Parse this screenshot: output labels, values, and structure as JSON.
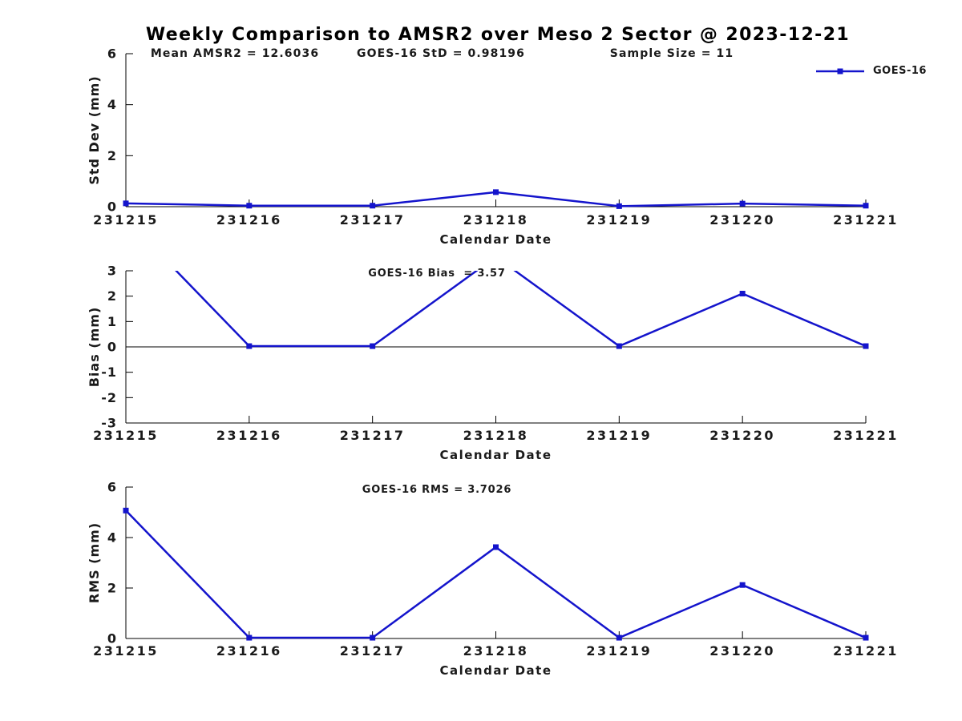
{
  "title": "Weekly Comparison to AMSR2 over Meso 2 Sector @ 2023-12-21",
  "header_stats": [
    {
      "text": "Mean AMSR2 = 12.6036"
    },
    {
      "text": "GOES-16 StD = 0.98196"
    },
    {
      "text": "Sample Size = 11"
    }
  ],
  "legend": {
    "label": "GOES-16",
    "position": "top-right"
  },
  "colors": {
    "series": "#1414cc",
    "axis": "#000000",
    "text": "#1a1a1a"
  },
  "chart_data": [
    {
      "type": "line",
      "title": "",
      "xlabel": "Calendar Date",
      "ylabel": "Std Dev (mm)",
      "categories": [
        "231215",
        "231216",
        "231217",
        "231218",
        "231219",
        "231220",
        "231221"
      ],
      "series": [
        {
          "name": "GOES-16",
          "values": [
            0.13,
            0.04,
            0.04,
            0.57,
            0.02,
            0.12,
            0.04
          ]
        }
      ],
      "ylim": [
        0,
        6
      ],
      "yticks": [
        0,
        2,
        4,
        6
      ],
      "grid": false,
      "zero_line": false,
      "clip_to_ylim": true,
      "marker": "square"
    },
    {
      "type": "line",
      "title": "GOES-16 Bias  = 3.57",
      "xlabel": "Calendar Date",
      "ylabel": "Bias (mm)",
      "categories": [
        "231215",
        "231216",
        "231217",
        "231218",
        "231219",
        "231220",
        "231221"
      ],
      "series": [
        {
          "name": "GOES-16",
          "values": [
            5.05,
            0.03,
            0.03,
            3.55,
            0.03,
            2.1,
            0.03
          ]
        }
      ],
      "ylim": [
        -3,
        3
      ],
      "yticks": [
        -3,
        -2,
        -1,
        0,
        1,
        2,
        3
      ],
      "grid": false,
      "zero_line": true,
      "clip_to_ylim": true,
      "marker": "square"
    },
    {
      "type": "line",
      "title": "GOES-16 RMS = 3.7026",
      "xlabel": "Calendar Date",
      "ylabel": "RMS (mm)",
      "categories": [
        "231215",
        "231216",
        "231217",
        "231218",
        "231219",
        "231220",
        "231221"
      ],
      "series": [
        {
          "name": "GOES-16",
          "values": [
            5.07,
            0.03,
            0.03,
            3.62,
            0.03,
            2.12,
            0.03
          ]
        }
      ],
      "ylim": [
        0,
        6
      ],
      "yticks": [
        0,
        2,
        4,
        6
      ],
      "grid": false,
      "zero_line": false,
      "clip_to_ylim": true,
      "marker": "square"
    }
  ]
}
